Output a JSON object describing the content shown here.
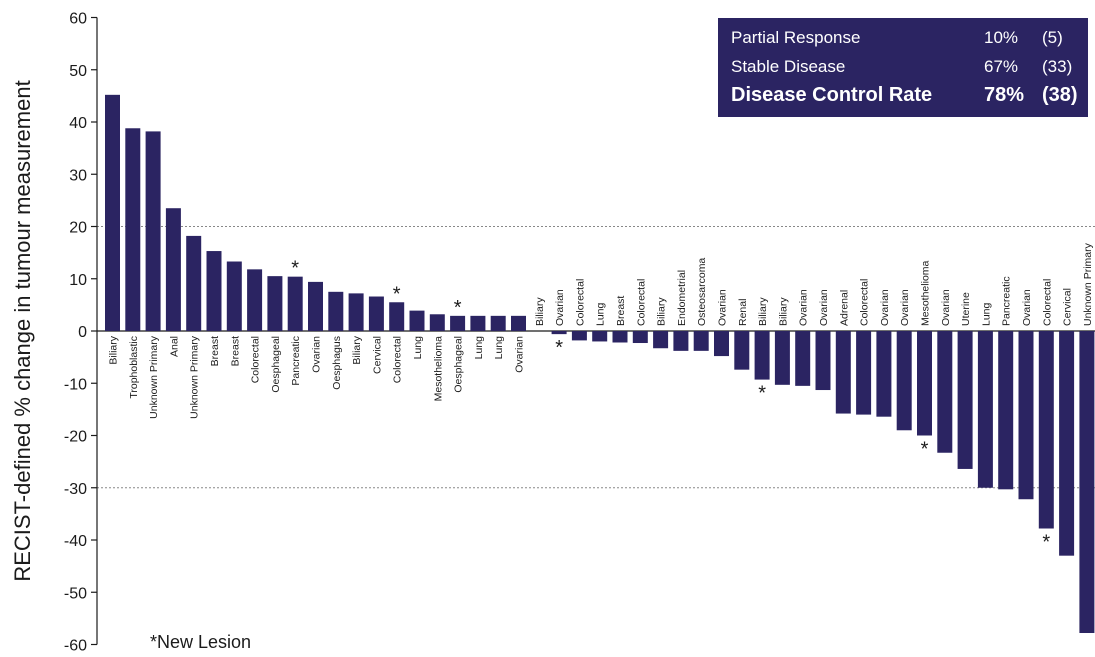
{
  "chart_data": {
    "type": "bar",
    "ylabel": "RECIST-defined % change in tumour measurement",
    "ylim": [
      -60,
      60
    ],
    "yticks": [
      60,
      50,
      40,
      30,
      20,
      10,
      0,
      -10,
      -20,
      -30,
      -40,
      -50,
      -60
    ],
    "reference_lines": [
      20,
      -30
    ],
    "bar_color": "#2b2462",
    "categories": [
      "Biliary",
      "Trophoblastic",
      "Unknown Primary",
      "Anal",
      "Unknown Primary",
      "Breast",
      "Breast",
      "Colorectal",
      "Oesphageal",
      "Pancreatic",
      "Ovarian",
      "Oesphagus",
      "Biliary",
      "Cervical",
      "Colorectal",
      "Lung",
      "Mesothelioma",
      "Oesphageal",
      "Lung",
      "Lung",
      "Ovarian",
      "Biliary",
      "Ovarian",
      "Colorectal",
      "Lung",
      "Breast",
      "Colorectal",
      "Biliary",
      "Endometrial",
      "Osteosarcoma",
      "Ovarian",
      "Renal",
      "Biliary",
      "Biliary",
      "Ovarian",
      "Ovarian",
      "Adrenal",
      "Colorectal",
      "Ovarian",
      "Ovarian",
      "Mesothelioma",
      "Ovarian",
      "Uterine",
      "Lung",
      "Pancreatic",
      "Ovarian",
      "Colorectal",
      "Cervical",
      "Unknown Primary"
    ],
    "values": [
      45.2,
      38.8,
      38.2,
      23.5,
      18.2,
      15.3,
      13.3,
      11.8,
      10.5,
      10.4,
      9.4,
      7.5,
      7.2,
      6.6,
      5.5,
      3.9,
      3.2,
      2.9,
      2.9,
      2.9,
      2.9,
      0.0,
      -0.6,
      -1.8,
      -2.0,
      -2.2,
      -2.3,
      -3.3,
      -3.8,
      -3.8,
      -4.8,
      -7.4,
      -9.3,
      -10.3,
      -10.5,
      -11.3,
      -15.8,
      -16.0,
      -16.4,
      -19.0,
      -20.0,
      -23.3,
      -26.4,
      -30.0,
      -30.3,
      -32.2,
      -37.8,
      -43.0,
      -57.8
    ],
    "new_lesion_indices": [
      9,
      14,
      17,
      22,
      32,
      40,
      46
    ],
    "annotation_marker": "*"
  },
  "legend": {
    "rows": [
      {
        "label": "Partial Response",
        "percent": "10%",
        "count": "(5)"
      },
      {
        "label": "Stable Disease",
        "percent": "67%",
        "count": "(33)"
      },
      {
        "label": "Disease Control Rate",
        "percent": "78%",
        "count": "(38)"
      }
    ]
  },
  "footnote": "*New Lesion"
}
